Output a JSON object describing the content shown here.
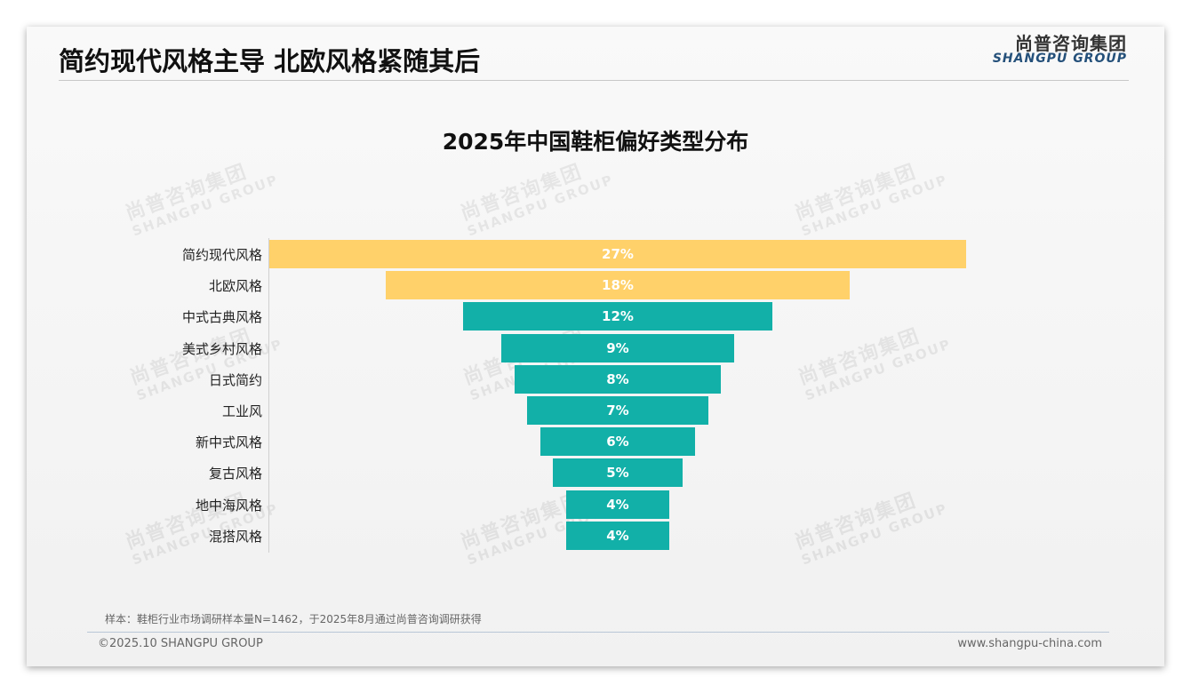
{
  "header": {
    "title": "简约现代风格主导 北欧风格紧随其后",
    "logo_cn": "尚普咨询集团",
    "logo_en": "SHANGPU GROUP"
  },
  "watermark": {
    "cn": "尚普咨询集团",
    "en": "SHANGPU GROUP"
  },
  "colors": {
    "highlight": "#ffd16a",
    "normal": "#12b0a8"
  },
  "chart_data": {
    "type": "bar",
    "orientation": "horizontal-funnel",
    "title": "2025年中国鞋柜偏好类型分布",
    "categories": [
      "简约现代风格",
      "北欧风格",
      "中式古典风格",
      "美式乡村风格",
      "日式简约",
      "工业风",
      "新中式风格",
      "复古风格",
      "地中海风格",
      "混搭风格"
    ],
    "values": [
      27,
      18,
      12,
      9,
      8,
      7,
      6,
      5,
      4,
      4
    ],
    "labels": [
      "27%",
      "18%",
      "12%",
      "9%",
      "8%",
      "7%",
      "6%",
      "5%",
      "4%",
      "4%"
    ],
    "highlighted": [
      true,
      true,
      false,
      false,
      false,
      false,
      false,
      false,
      false,
      false
    ],
    "unit": "%",
    "xlim": [
      0,
      27
    ]
  },
  "footer": {
    "note": "样本：鞋柜行业市场调研样本量N=1462，于2025年8月通过尚普咨询调研获得",
    "copyright": "©2025.10 SHANGPU GROUP",
    "url": "www.shangpu-china.com"
  }
}
